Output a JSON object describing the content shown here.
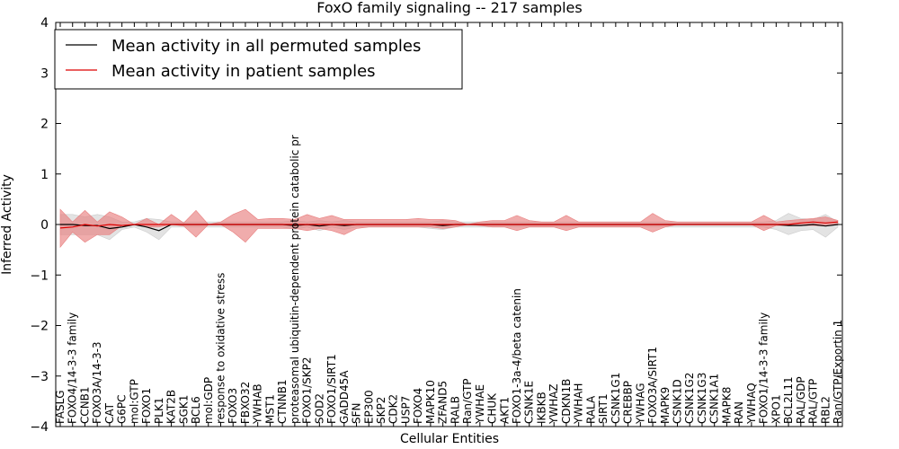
{
  "chart_data": {
    "type": "line",
    "title": "FoxO family signaling -- 217 samples",
    "xlabel": "Cellular Entities",
    "ylabel": "Inferred Activity",
    "ylim": [
      -4,
      4
    ],
    "yticks": [
      -4,
      -3,
      -2,
      -1,
      0,
      1,
      2,
      3,
      4
    ],
    "ytick_labels": [
      "−4",
      "−3",
      "−2",
      "−1",
      "0",
      "1",
      "2",
      "3",
      "4"
    ],
    "grid": false,
    "legend_position": "top-left",
    "categories": [
      "FASLG",
      "FOXO4/14-3-3 family",
      "CCNB1",
      "FOXO3A/14-3-3",
      "CAT",
      "G6PC",
      "mol:GTP",
      "FOXO1",
      "PLK1",
      "KAT2B",
      "SGK1",
      "BCL6",
      "mol:GDP",
      "response to oxidative stress",
      "FOXO3",
      "FBXO32",
      "YWHAB",
      "MST1",
      "CTNNB1",
      "proteasomal ubiquitin-dependent protein catabolic pr",
      "FOXO1/SKP2",
      "SOD2",
      "FOXO1/SIRT1",
      "GADD45A",
      "SFN",
      "EP300",
      "SKP2",
      "CDK2",
      "USP7",
      "FOXO4",
      "MAPK10",
      "ZFAND5",
      "RALB",
      "Ran/GTP",
      "YWHAE",
      "CHUK",
      "AKT1",
      "FOXO1-3a-4/beta catenin",
      "CSNK1E",
      "IKBKB",
      "YWHAZ",
      "CDKN1B",
      "YWHAH",
      "RALA",
      "SIRT1",
      "CSNK1G1",
      "CREBBP",
      "YWHAG",
      "FOXO3A/SIRT1",
      "MAPK9",
      "CSNK1D",
      "CSNK1G2",
      "CSNK1G3",
      "CSNK1A1",
      "MAPK8",
      "RAN",
      "YWHAQ",
      "FOXO1/14-3-3 family",
      "XPO1",
      "BCL2L11",
      "RAL/GDP",
      "RAL/GTP",
      "RBL2",
      "Ran/GTP/Exportin 1"
    ],
    "series": [
      {
        "name": "Mean activity in all permuted samples",
        "color": "#000000",
        "band_color": "#cccccc",
        "values": [
          0.0,
          0.0,
          -0.02,
          -0.02,
          -0.08,
          -0.05,
          0.0,
          -0.05,
          -0.12,
          0.0,
          0.0,
          0.0,
          0.0,
          0.0,
          0.0,
          0.0,
          0.0,
          0.0,
          0.0,
          -0.02,
          0.0,
          -0.03,
          0.0,
          -0.02,
          0.0,
          0.0,
          0.0,
          0.0,
          0.0,
          0.0,
          0.0,
          -0.02,
          0.0,
          0.0,
          0.0,
          0.0,
          0.0,
          0.0,
          0.0,
          0.0,
          0.0,
          0.0,
          0.0,
          0.0,
          0.0,
          0.0,
          0.0,
          0.0,
          0.0,
          0.0,
          0.0,
          0.0,
          0.0,
          0.0,
          0.0,
          0.0,
          0.0,
          0.0,
          0.0,
          -0.02,
          -0.02,
          0.0,
          -0.03,
          0.0
        ],
        "lower": [
          -0.2,
          -0.2,
          -0.2,
          -0.2,
          -0.3,
          -0.1,
          -0.05,
          -0.15,
          -0.3,
          -0.05,
          -0.05,
          -0.05,
          -0.05,
          -0.05,
          -0.05,
          -0.05,
          -0.05,
          -0.05,
          -0.05,
          -0.1,
          -0.05,
          -0.12,
          -0.05,
          -0.1,
          -0.05,
          -0.05,
          -0.05,
          -0.05,
          -0.05,
          -0.05,
          -0.08,
          -0.1,
          -0.05,
          -0.05,
          -0.05,
          -0.05,
          -0.05,
          -0.05,
          -0.05,
          -0.05,
          -0.05,
          -0.05,
          -0.05,
          -0.05,
          -0.05,
          -0.05,
          -0.05,
          -0.05,
          -0.05,
          -0.05,
          -0.05,
          -0.05,
          -0.05,
          -0.05,
          -0.05,
          -0.05,
          -0.05,
          -0.05,
          -0.1,
          -0.2,
          -0.12,
          -0.1,
          -0.25,
          -0.05
        ],
        "upper": [
          0.2,
          0.2,
          0.15,
          0.2,
          0.15,
          0.05,
          0.05,
          0.12,
          0.1,
          0.05,
          0.05,
          0.05,
          0.05,
          0.05,
          0.05,
          0.05,
          0.05,
          0.05,
          0.05,
          0.08,
          0.05,
          0.08,
          0.05,
          0.08,
          0.05,
          0.05,
          0.05,
          0.05,
          0.05,
          0.05,
          0.05,
          0.08,
          0.05,
          0.05,
          0.05,
          0.05,
          0.05,
          0.05,
          0.05,
          0.05,
          0.05,
          0.05,
          0.05,
          0.05,
          0.05,
          0.05,
          0.05,
          0.05,
          0.05,
          0.05,
          0.05,
          0.05,
          0.05,
          0.05,
          0.05,
          0.05,
          0.05,
          0.05,
          0.08,
          0.22,
          0.12,
          0.1,
          0.2,
          0.05
        ]
      },
      {
        "name": "Mean activity in patient samples",
        "color": "#dd0000",
        "band_color": "#e87f7f",
        "values": [
          -0.07,
          -0.05,
          0.0,
          -0.03,
          0.0,
          -0.02,
          0.0,
          0.0,
          0.0,
          0.0,
          0.0,
          0.0,
          0.0,
          0.0,
          0.0,
          0.0,
          0.0,
          0.0,
          0.0,
          0.0,
          0.0,
          0.0,
          0.0,
          0.0,
          0.0,
          0.0,
          0.0,
          0.0,
          0.0,
          0.0,
          0.0,
          0.0,
          0.0,
          0.0,
          0.0,
          0.0,
          0.0,
          0.0,
          0.0,
          0.0,
          0.0,
          0.0,
          0.0,
          0.0,
          0.0,
          0.0,
          0.0,
          0.0,
          0.0,
          0.0,
          0.0,
          0.0,
          0.0,
          0.0,
          0.0,
          0.0,
          0.0,
          0.0,
          0.0,
          0.0,
          0.03,
          0.05,
          0.03,
          0.05
        ],
        "lower": [
          -0.45,
          -0.15,
          -0.35,
          -0.2,
          -0.2,
          -0.02,
          0.0,
          -0.05,
          -0.05,
          0.0,
          -0.03,
          -0.25,
          0.0,
          0.0,
          -0.15,
          -0.35,
          -0.08,
          -0.08,
          -0.08,
          -0.08,
          -0.12,
          -0.08,
          -0.12,
          -0.2,
          -0.08,
          -0.05,
          -0.05,
          -0.05,
          -0.05,
          -0.05,
          -0.05,
          -0.08,
          -0.05,
          0.0,
          -0.02,
          -0.05,
          -0.05,
          -0.12,
          -0.05,
          -0.05,
          -0.05,
          -0.12,
          -0.05,
          -0.05,
          -0.05,
          -0.05,
          -0.05,
          -0.05,
          -0.15,
          -0.05,
          0.0,
          0.0,
          0.0,
          0.0,
          0.0,
          0.0,
          0.0,
          -0.12,
          -0.02,
          -0.02,
          -0.02,
          -0.02,
          -0.03,
          0.0
        ],
        "upper": [
          0.3,
          0.05,
          0.28,
          0.05,
          0.25,
          0.15,
          0.0,
          0.12,
          0.0,
          0.2,
          0.03,
          0.28,
          0.0,
          0.05,
          0.2,
          0.3,
          0.1,
          0.12,
          0.12,
          0.1,
          0.2,
          0.12,
          0.18,
          0.1,
          0.1,
          0.1,
          0.1,
          0.1,
          0.1,
          0.12,
          0.1,
          0.1,
          0.08,
          0.0,
          0.05,
          0.08,
          0.08,
          0.18,
          0.08,
          0.05,
          0.05,
          0.18,
          0.05,
          0.05,
          0.05,
          0.05,
          0.05,
          0.05,
          0.22,
          0.08,
          0.05,
          0.05,
          0.05,
          0.05,
          0.05,
          0.05,
          0.05,
          0.18,
          0.05,
          0.08,
          0.1,
          0.12,
          0.15,
          0.08
        ]
      }
    ]
  }
}
